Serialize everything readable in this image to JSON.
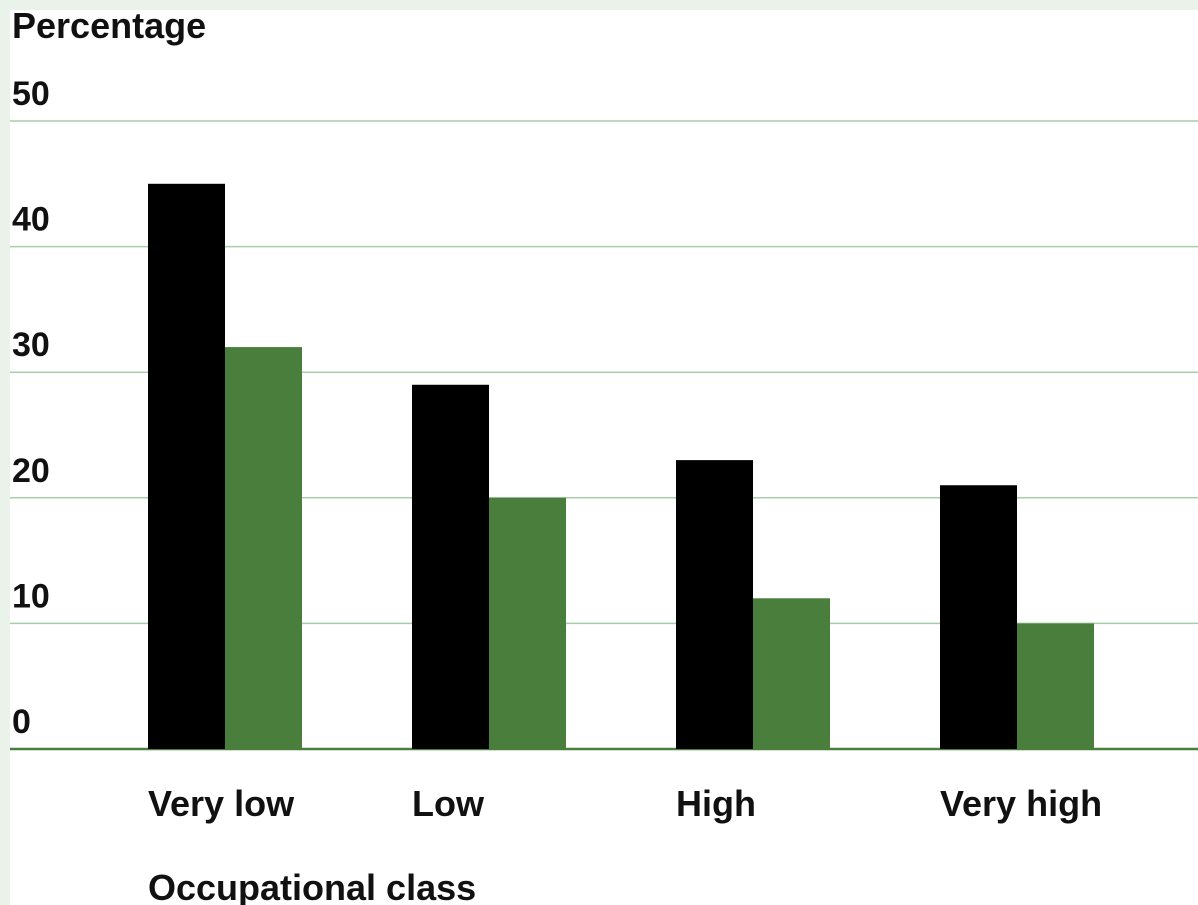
{
  "chart_data": {
    "type": "bar",
    "ylabel": "Percentage",
    "xlabel": "Occupational class",
    "ylim": [
      0,
      50
    ],
    "yticks": [
      0,
      10,
      20,
      30,
      40,
      50
    ],
    "grid": true,
    "categories": [
      "Very low",
      "Low",
      "High",
      "Very high"
    ],
    "series": [
      {
        "values": [
          45,
          29,
          23,
          21
        ],
        "color": "#000000"
      },
      {
        "values": [
          32,
          20,
          12,
          10
        ],
        "color": "#4a7e3c"
      }
    ],
    "colors": {
      "gridline": "#a9cda9",
      "baseline": "#4a7e3c",
      "background": "#ffffff",
      "frame": "#eaf3ea"
    }
  }
}
